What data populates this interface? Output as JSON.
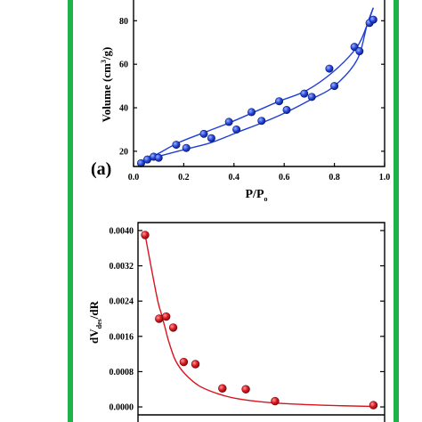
{
  "colors": {
    "frame": "#1db34a",
    "series_top": "#1f3fd6",
    "series_bottom": "#d8141e"
  },
  "chart_data": [
    {
      "type": "line",
      "panel_label": "(a)",
      "xlabel": "P/P",
      "xlabel_sub": "o",
      "ylabel": "Volume (cm",
      "ylabel_sup": "3",
      "ylabel_end": "/g)",
      "xlim": [
        0,
        1.0
      ],
      "ylim": [
        13,
        92
      ],
      "xticks": [
        0.0,
        0.2,
        0.4,
        0.6,
        0.8,
        1.0
      ],
      "xtick_labels": [
        "0.0",
        "0.2",
        "0.4",
        "0.6",
        "0.8",
        "1.0"
      ],
      "yticks": [
        20,
        40,
        60,
        80
      ],
      "ytick_labels": [
        "20",
        "40",
        "60",
        "80"
      ],
      "grid": false,
      "series": [
        {
          "role": "adsorption",
          "x": [
            0.02,
            0.045,
            0.08,
            0.11,
            0.21,
            0.31,
            0.42,
            0.51,
            0.61,
            0.71,
            0.8,
            0.89,
            0.93,
            0.955
          ],
          "y": [
            14.5,
            15.5,
            17,
            18,
            21,
            24,
            29,
            33,
            38,
            44,
            50,
            62,
            78,
            86
          ]
        },
        {
          "role": "desorption",
          "x": [
            0.955,
            0.93,
            0.89,
            0.8,
            0.69,
            0.58,
            0.48,
            0.38,
            0.29,
            0.18,
            0.1,
            0.06,
            0.03
          ],
          "y": [
            86,
            78,
            68,
            57,
            48,
            43,
            38,
            33,
            29,
            24,
            19,
            16.5,
            15
          ]
        }
      ],
      "markers": [
        {
          "x": 0.03,
          "y": 14.5
        },
        {
          "x": 0.055,
          "y": 16.2
        },
        {
          "x": 0.08,
          "y": 17.5
        },
        {
          "x": 0.1,
          "y": 17
        },
        {
          "x": 0.17,
          "y": 23
        },
        {
          "x": 0.21,
          "y": 21.5
        },
        {
          "x": 0.28,
          "y": 28
        },
        {
          "x": 0.31,
          "y": 26
        },
        {
          "x": 0.38,
          "y": 33.5
        },
        {
          "x": 0.41,
          "y": 30
        },
        {
          "x": 0.47,
          "y": 38
        },
        {
          "x": 0.51,
          "y": 34
        },
        {
          "x": 0.58,
          "y": 43
        },
        {
          "x": 0.61,
          "y": 39
        },
        {
          "x": 0.68,
          "y": 46.5
        },
        {
          "x": 0.71,
          "y": 45
        },
        {
          "x": 0.78,
          "y": 58
        },
        {
          "x": 0.8,
          "y": 50
        },
        {
          "x": 0.88,
          "y": 68
        },
        {
          "x": 0.9,
          "y": 66
        },
        {
          "x": 0.94,
          "y": 79
        },
        {
          "x": 0.955,
          "y": 80.5
        }
      ]
    },
    {
      "type": "line",
      "xlabel": "",
      "ylabel": "dV",
      "ylabel_sub": "des",
      "ylabel_end": "/dR",
      "xlim": [
        0,
        1.0
      ],
      "ylim": [
        -0.0001,
        0.0041
      ],
      "yticks": [
        0.0,
        0.0008,
        0.0016,
        0.0024,
        0.0032,
        0.004
      ],
      "ytick_labels": [
        "0.0000",
        "0.0008",
        "0.0016",
        "0.0024",
        "0.0032",
        "0.0040"
      ],
      "grid": false,
      "series": [
        {
          "x": [
            0.0,
            0.05,
            0.07,
            0.085,
            0.1,
            0.13,
            0.17,
            0.23,
            0.31,
            0.4,
            0.55,
            0.75,
            0.98
          ],
          "y": [
            0.0039,
            0.0025,
            0.0021,
            0.0018,
            0.0015,
            0.00105,
            0.00075,
            0.00048,
            0.0003,
            0.00018,
            9e-05,
            4e-05,
            1e-05
          ]
        }
      ],
      "markers": [
        {
          "x": 0.0,
          "y": 0.0039
        },
        {
          "x": 0.06,
          "y": 0.002
        },
        {
          "x": 0.09,
          "y": 0.00205
        },
        {
          "x": 0.12,
          "y": 0.0018
        },
        {
          "x": 0.165,
          "y": 0.00102
        },
        {
          "x": 0.215,
          "y": 0.00097
        },
        {
          "x": 0.33,
          "y": 0.00042
        },
        {
          "x": 0.43,
          "y": 0.0004
        },
        {
          "x": 0.555,
          "y": 0.00013
        },
        {
          "x": 0.975,
          "y": 4e-05
        }
      ]
    }
  ]
}
